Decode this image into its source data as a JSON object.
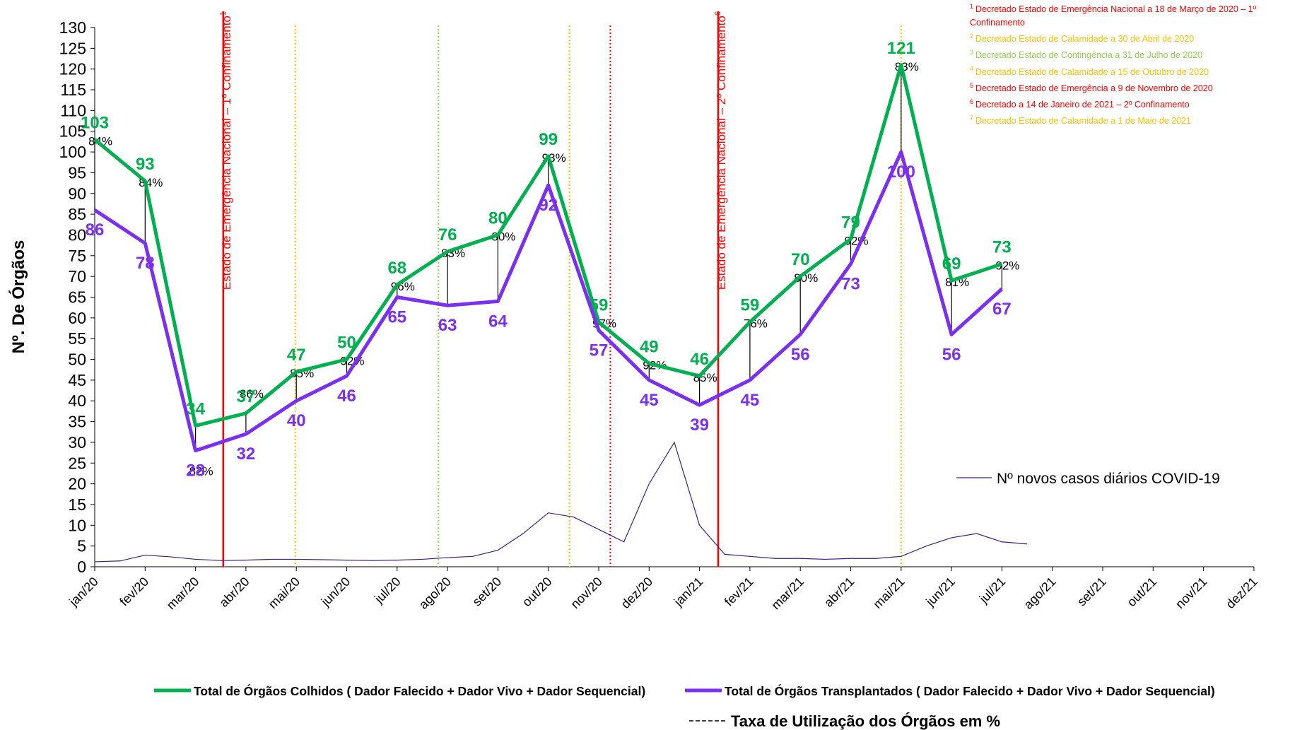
{
  "chart_data": {
    "type": "line",
    "y_label": "Nº. De  Órgãos",
    "categories": [
      "jan/20",
      "fev/20",
      "mar/20",
      "abr/20",
      "mai/20",
      "jun/20",
      "jul/20",
      "ago/20",
      "set/20",
      "out/20",
      "nov/20",
      "dez/20",
      "jan/21",
      "fev/21",
      "mar/21",
      "abr/21",
      "mai/21",
      "jun/21",
      "jul/21",
      "ago/21",
      "set/21",
      "out/21",
      "nov/21",
      "dez/21"
    ],
    "series": [
      {
        "name": "Total de Órgãos Colhidos ( Dador Falecido + Dador Vivo + Dador Sequencial)",
        "color": "#00b050",
        "values": [
          103,
          93,
          34,
          37,
          47,
          50,
          68,
          76,
          80,
          99,
          59,
          49,
          46,
          59,
          70,
          79,
          121,
          69,
          73,
          null,
          null,
          null,
          null,
          null
        ]
      },
      {
        "name": "Total de Órgãos Transplantados ( Dador Falecido + Dador Vivo + Dador Sequencial)",
        "color": "#7b2ff0",
        "values": [
          86,
          78,
          28,
          32,
          40,
          46,
          65,
          63,
          64,
          92,
          57,
          45,
          39,
          45,
          56,
          73,
          100,
          56,
          67,
          null,
          null,
          null,
          null,
          null
        ]
      }
    ],
    "utilization": {
      "name": "Taxa de Utilização dos Órgãos em %",
      "color": "#000000",
      "values": [
        84,
        84,
        82,
        86,
        85,
        92,
        96,
        83,
        80,
        93,
        97,
        92,
        85,
        76,
        80,
        92,
        83,
        81,
        92
      ],
      "value_labels": [
        "84%",
        "84%",
        "82%",
        "86%",
        "85%",
        "92%",
        "96%",
        "83%",
        "80%",
        "93%",
        "97%",
        "92%",
        "85%",
        "76%",
        "80%",
        "92%",
        "83%",
        "81%",
        "92%"
      ]
    },
    "covid": {
      "name": "Nº novos casos diários COVID-19",
      "color": "#3c1f7a",
      "values": [
        1.2,
        1.4,
        2.8,
        2.4,
        1.8,
        1.5,
        1.6,
        1.8,
        1.8,
        1.7,
        1.6,
        1.5,
        1.6,
        1.8,
        2.2,
        2.5,
        4,
        8,
        13,
        12,
        9,
        6,
        20,
        30,
        10,
        3,
        2.5,
        2,
        2,
        1.8,
        2,
        2,
        2.5,
        5,
        7,
        8,
        6,
        5.5
      ]
    },
    "ylim": [
      0,
      130
    ],
    "yticks": [
      0,
      5,
      10,
      15,
      20,
      25,
      30,
      35,
      40,
      45,
      50,
      55,
      60,
      65,
      70,
      75,
      80,
      85,
      90,
      95,
      100,
      105,
      110,
      115,
      120,
      125,
      130
    ],
    "events": [
      {
        "number": "1",
        "color": "#ff0000",
        "style": "solid",
        "label": "Estado de Emergência Nacional – 1º Confinamento",
        "note": "Decretado Estado de Emergência Nacional a 18 de Março de 2020 – 1º Confinamento"
      },
      {
        "number": "2",
        "color": "#ffc000",
        "style": "dotted",
        "note": "Decretado Estado de Calamidade a 30 de Abril de 2020"
      },
      {
        "number": "3",
        "color": "#92d050",
        "style": "dotted",
        "note": "Decretado Estado de Contingência a 31 de Julho de 2020"
      },
      {
        "number": "4",
        "color": "#ffc000",
        "style": "dotted",
        "note": "Decretado Estado de Calamidade a 15 de Outubro de 2020"
      },
      {
        "number": "5",
        "color": "#ff0000",
        "style": "dotted",
        "note": "Decretado Estado de Emergência a 9  de Novembro de 2020"
      },
      {
        "number": "6",
        "color": "#ff0000",
        "style": "solid",
        "label": "Estado de Emergência Nacional – 2º Confinamento",
        "note": "Decretado a 14 de Janeiro de 2021 – 2º Confinamento"
      },
      {
        "number": "7",
        "color": "#ffc000",
        "style": "dotted",
        "note": "Decretado Estado de Calamidade a 1 de  Maio de 2021"
      }
    ]
  }
}
